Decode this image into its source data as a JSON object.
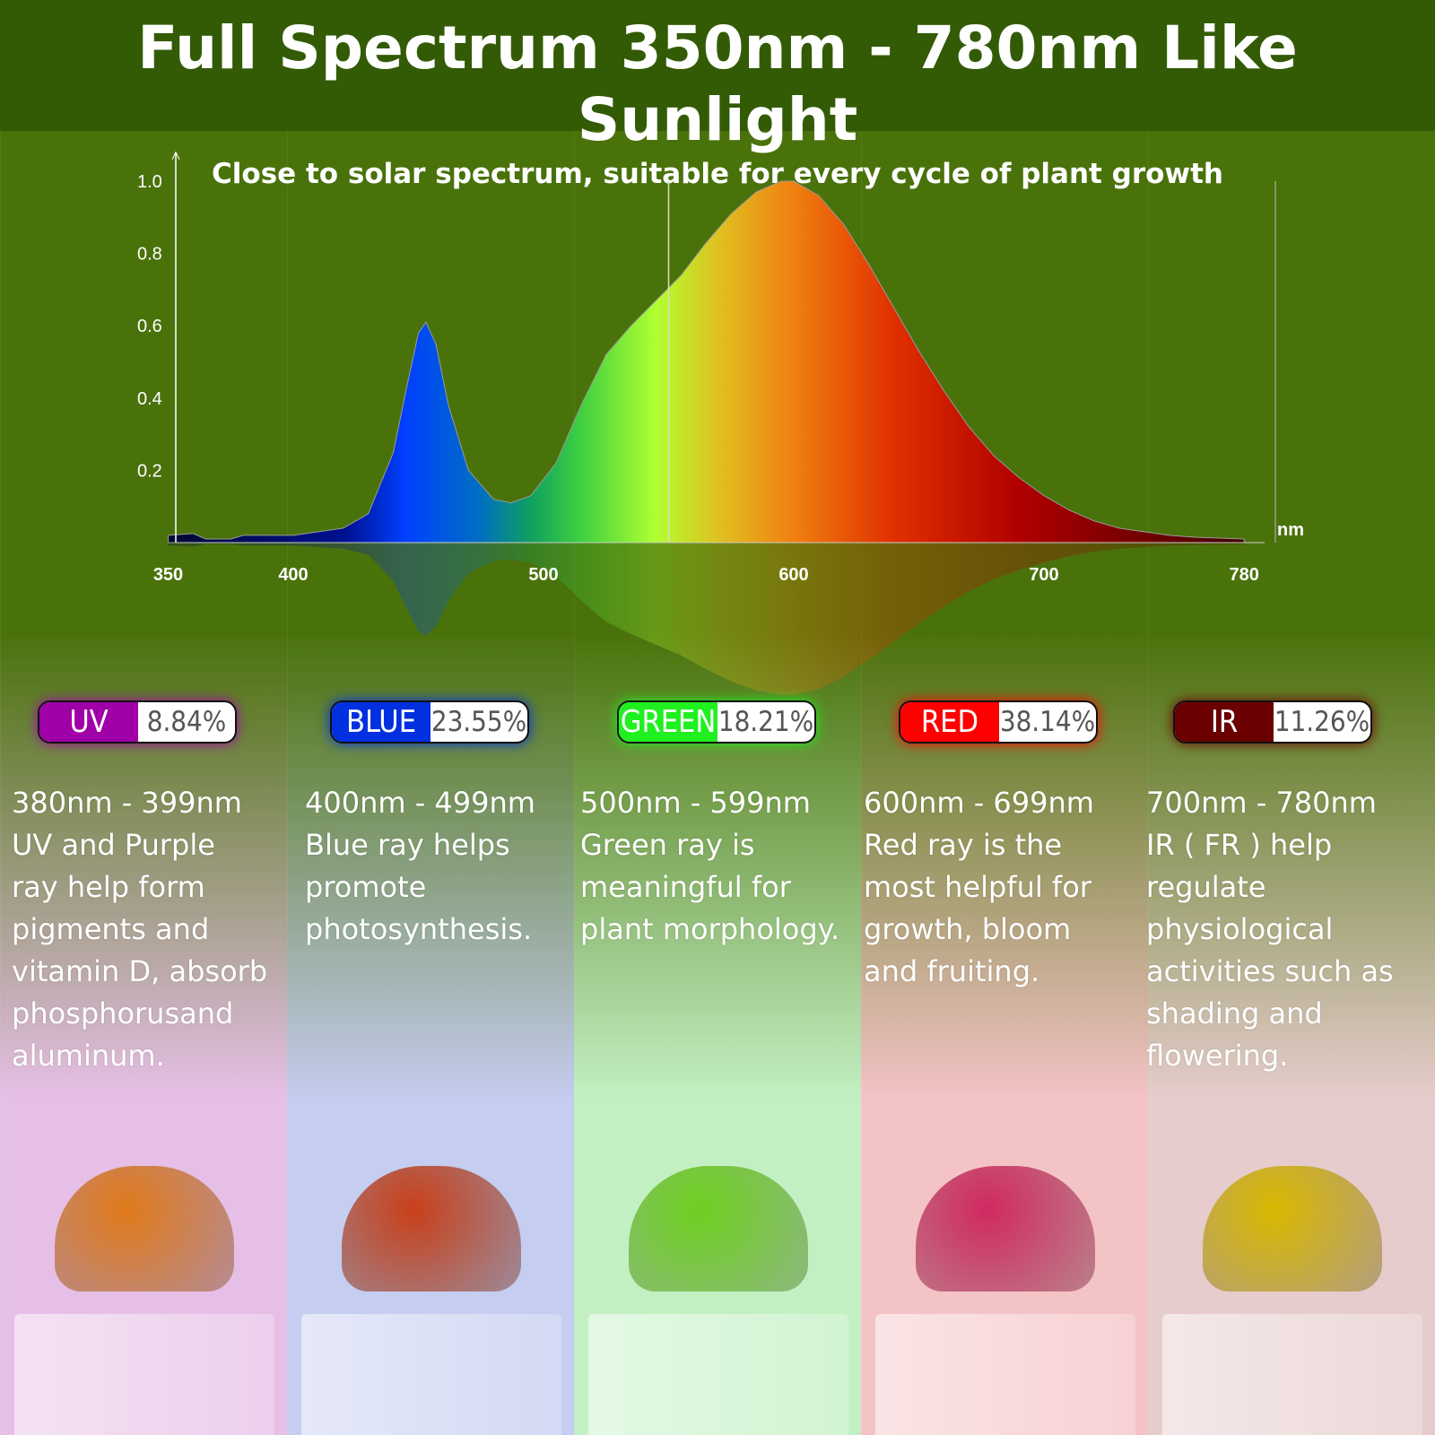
{
  "header": {
    "title": "Full Spectrum 350nm - 780nm Like Sunlight",
    "subtitle": "Close to solar spectrum, suitable for every cycle of plant growth"
  },
  "chart_data": {
    "type": "area",
    "title": "",
    "xlabel": "",
    "ylabel": "",
    "x_unit": "nm",
    "xlim": [
      350,
      780
    ],
    "ylim": [
      0,
      1.05
    ],
    "x_ticks": [
      "350",
      "400",
      "500",
      "600",
      "700",
      "780"
    ],
    "y_ticks": [
      "0.2",
      "0.4",
      "0.6",
      "0.8",
      "1.0"
    ],
    "grid": false,
    "fill": "wavelength-color gradient",
    "x": [
      350,
      360,
      365,
      375,
      380,
      400,
      420,
      430,
      440,
      445,
      450,
      453,
      457,
      462,
      470,
      480,
      487,
      495,
      505,
      515,
      525,
      535,
      545,
      555,
      565,
      575,
      585,
      595,
      600,
      610,
      620,
      630,
      640,
      650,
      660,
      670,
      680,
      690,
      700,
      710,
      720,
      730,
      740,
      750,
      760,
      780
    ],
    "y": [
      0.02,
      0.025,
      0.01,
      0.01,
      0.02,
      0.02,
      0.04,
      0.08,
      0.25,
      0.42,
      0.58,
      0.61,
      0.55,
      0.38,
      0.2,
      0.12,
      0.11,
      0.13,
      0.22,
      0.38,
      0.52,
      0.6,
      0.67,
      0.74,
      0.83,
      0.91,
      0.97,
      1.0,
      1.0,
      0.96,
      0.88,
      0.77,
      0.65,
      0.53,
      0.42,
      0.32,
      0.24,
      0.18,
      0.13,
      0.09,
      0.06,
      0.04,
      0.03,
      0.02,
      0.015,
      0.01
    ],
    "marker_line_x": 550
  },
  "bands": [
    {
      "name": "UV",
      "percent": "8.84%",
      "color": "#a000a8",
      "range": "380nm - 399nm",
      "text": "UV and Purple\nray help form\npigments and\nvitamin D, absorb\nphosphorusand\naluminum.",
      "bg": "#e6bfe6",
      "plant": "#e07a1a"
    },
    {
      "name": "BLUE",
      "percent": "23.55%",
      "color": "#0030e0",
      "range": "400nm - 499nm",
      "text": "Blue ray helps\npromote\nphotosynthesis.",
      "bg": "#c5cdf0",
      "plant": "#c8401a"
    },
    {
      "name": "GREEN",
      "percent": "18.21%",
      "color": "#20f020",
      "range": "500nm - 599nm",
      "text": "Green ray is\nmeaningful for\nplant morphology.",
      "bg": "#c3f0c3",
      "plant": "#6fcf20"
    },
    {
      "name": "RED",
      "percent": "38.14%",
      "color": "#ff0000",
      "range": "600nm - 699nm",
      "text": "Red ray is the\nmost helpful for\ngrowth, bloom\nand fruiting.",
      "bg": "#f4c3c6",
      "plant": "#d02a60"
    },
    {
      "name": "IR",
      "percent": "11.26%",
      "color": "#6a0000",
      "range": "700nm - 780nm",
      "text": "IR ( FR )  help\nregulate\nphysiological\nactivities such as\nshading and\nflowering.",
      "bg": "#e6cccc",
      "plant": "#d8b800"
    }
  ]
}
